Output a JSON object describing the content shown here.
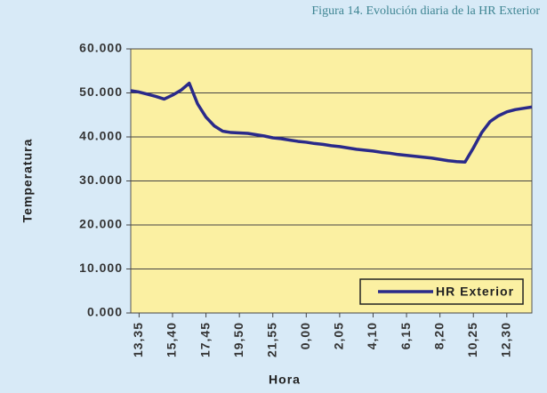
{
  "chart_data": {
    "type": "line",
    "title": "Figura 14. Evolución diaria de la HR Exterior",
    "x_label": "Hora",
    "y_label": "Temperatura",
    "categories": [
      null,
      "13,35",
      null,
      null,
      null,
      "15,40",
      null,
      null,
      null,
      "17,45",
      null,
      null,
      null,
      "19,50",
      null,
      null,
      null,
      "21,55",
      null,
      null,
      null,
      "0,00",
      null,
      null,
      null,
      "2,05",
      null,
      null,
      null,
      "4,10",
      null,
      null,
      null,
      "6,15",
      null,
      null,
      null,
      "8,20",
      null,
      null,
      null,
      "10,25",
      null,
      null,
      null,
      "12,30",
      null,
      null,
      null
    ],
    "series": [
      {
        "name": "HR Exterior",
        "color": "#2a2a8a",
        "values": [
          50.5,
          50.2,
          49.7,
          49.2,
          48.6,
          49.5,
          50.6,
          52.2,
          47.5,
          44.5,
          42.5,
          41.3,
          41.0,
          40.9,
          40.8,
          40.5,
          40.2,
          39.8,
          39.6,
          39.3,
          39.0,
          38.8,
          38.5,
          38.3,
          38.0,
          37.8,
          37.5,
          37.2,
          37.0,
          36.8,
          36.5,
          36.3,
          36.0,
          35.8,
          35.6,
          35.4,
          35.2,
          34.9,
          34.6,
          34.4,
          34.3,
          37.5,
          41.0,
          43.5,
          44.8,
          45.7,
          46.2,
          46.5,
          46.8
        ]
      }
    ],
    "ylim": [
      0,
      60
    ],
    "yticks": [
      {
        "value": 0,
        "label": "0.000"
      },
      {
        "value": 10,
        "label": "10.000"
      },
      {
        "value": 20,
        "label": "20.000"
      },
      {
        "value": 30,
        "label": "30.000"
      },
      {
        "value": 40,
        "label": "40.000"
      },
      {
        "value": 50,
        "label": "50.000"
      },
      {
        "value": 60,
        "label": "60.000"
      }
    ],
    "grid": true,
    "legend": "lower right"
  }
}
